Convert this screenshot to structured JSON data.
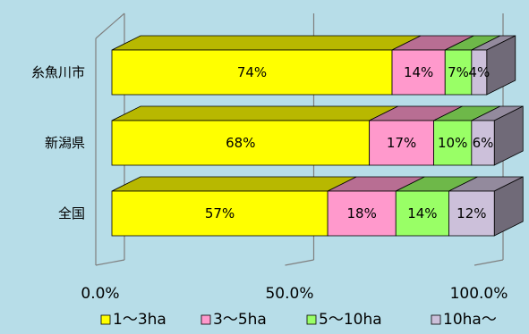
{
  "chart_data": {
    "type": "bar",
    "orientation": "horizontal",
    "stacked": "percent",
    "three_d": true,
    "categories": [
      "糸魚川市",
      "新潟県",
      "全国"
    ],
    "series": [
      {
        "name": "1～3ha",
        "values": [
          74,
          68,
          57
        ],
        "labels": [
          "74%",
          "68%",
          "57%"
        ],
        "color": "#ffff00"
      },
      {
        "name": "3～5ha",
        "values": [
          14,
          17,
          18
        ],
        "labels": [
          "14%",
          "17%",
          "18%"
        ],
        "color": "#ff99cc"
      },
      {
        "name": "5～10ha",
        "values": [
          7,
          10,
          14
        ],
        "labels": [
          "7%",
          "10%",
          "14%"
        ],
        "color": "#99ff66"
      },
      {
        "name": "10ha～",
        "values": [
          4,
          6,
          12
        ],
        "labels": [
          "4%",
          "6%",
          "12%"
        ],
        "color": "#ccc0da"
      }
    ],
    "xlim": [
      0,
      100
    ],
    "x_ticks": [
      0,
      50,
      100
    ],
    "x_tick_labels": [
      "0.0%",
      "50.0%",
      "100.0%"
    ],
    "grid": true,
    "legend_position": "bottom"
  },
  "colors": {
    "background": "#b7dde8",
    "grid": "#7f7f7f",
    "edge": "#000000"
  }
}
